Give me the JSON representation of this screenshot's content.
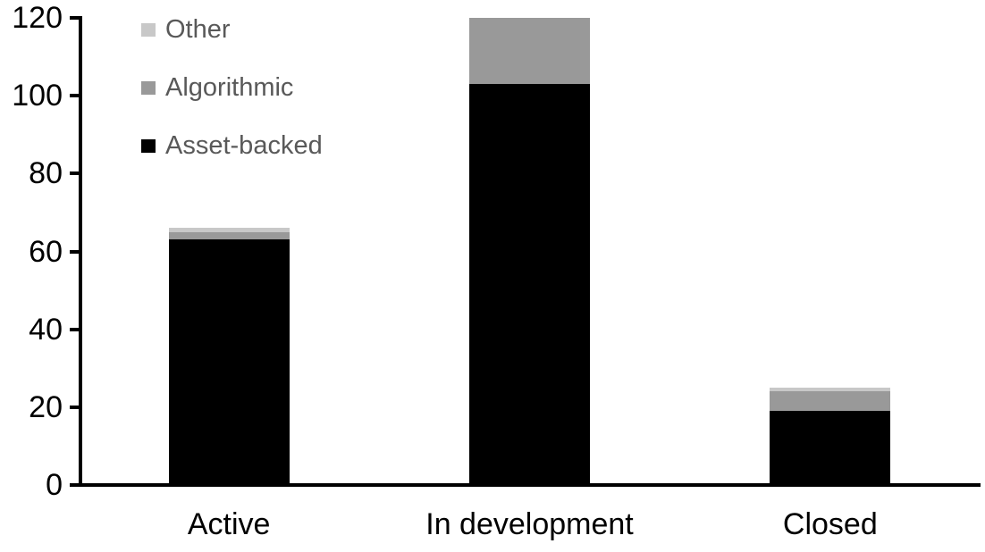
{
  "chart_data": {
    "type": "bar",
    "stacked": true,
    "title": "",
    "xlabel": "",
    "ylabel": "",
    "categories": [
      "Active",
      "In development",
      "Closed"
    ],
    "series": [
      {
        "name": "Asset-backed",
        "color": "#000000",
        "values": [
          63,
          103,
          19
        ]
      },
      {
        "name": "Algorithmic",
        "color": "#999999",
        "values": [
          2,
          17,
          5
        ]
      },
      {
        "name": "Other",
        "color": "#c8c8c8",
        "values": [
          1,
          0,
          1
        ]
      }
    ],
    "totals": [
      66,
      120,
      25
    ],
    "ylim": [
      0,
      120
    ],
    "yticks": [
      0,
      20,
      40,
      60,
      80,
      100,
      120
    ],
    "grid": false,
    "legend": {
      "position": "top-left",
      "order": [
        "Other",
        "Algorithmic",
        "Asset-backed"
      ],
      "text_color": "#595959"
    },
    "colors": {
      "axis": "#000000",
      "tick_label": "#000000",
      "background": "#ffffff"
    }
  }
}
